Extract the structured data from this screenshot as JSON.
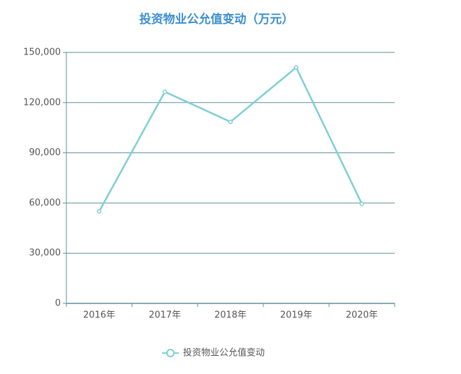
{
  "chart_data": {
    "type": "line",
    "title": "投资物业公允值变动（万元）",
    "categories": [
      "2016年",
      "2017年",
      "2018年",
      "2019年",
      "2020年"
    ],
    "series": [
      {
        "name": "投资物业公允值变动",
        "color": "#7ccfd6",
        "values": [
          55000,
          126500,
          108500,
          141000,
          59500
        ]
      }
    ],
    "ylim": [
      0,
      150000
    ],
    "yticks": [
      0,
      {
        "value": 30000,
        "label": "30,000"
      },
      {
        "value": 60000,
        "label": "60,000"
      },
      {
        "value": 90000,
        "label": "90,000"
      },
      {
        "value": 120000,
        "label": "120,000"
      },
      {
        "value": 150000,
        "label": "150,000"
      }
    ],
    "grid": true,
    "legend": "bottom"
  }
}
